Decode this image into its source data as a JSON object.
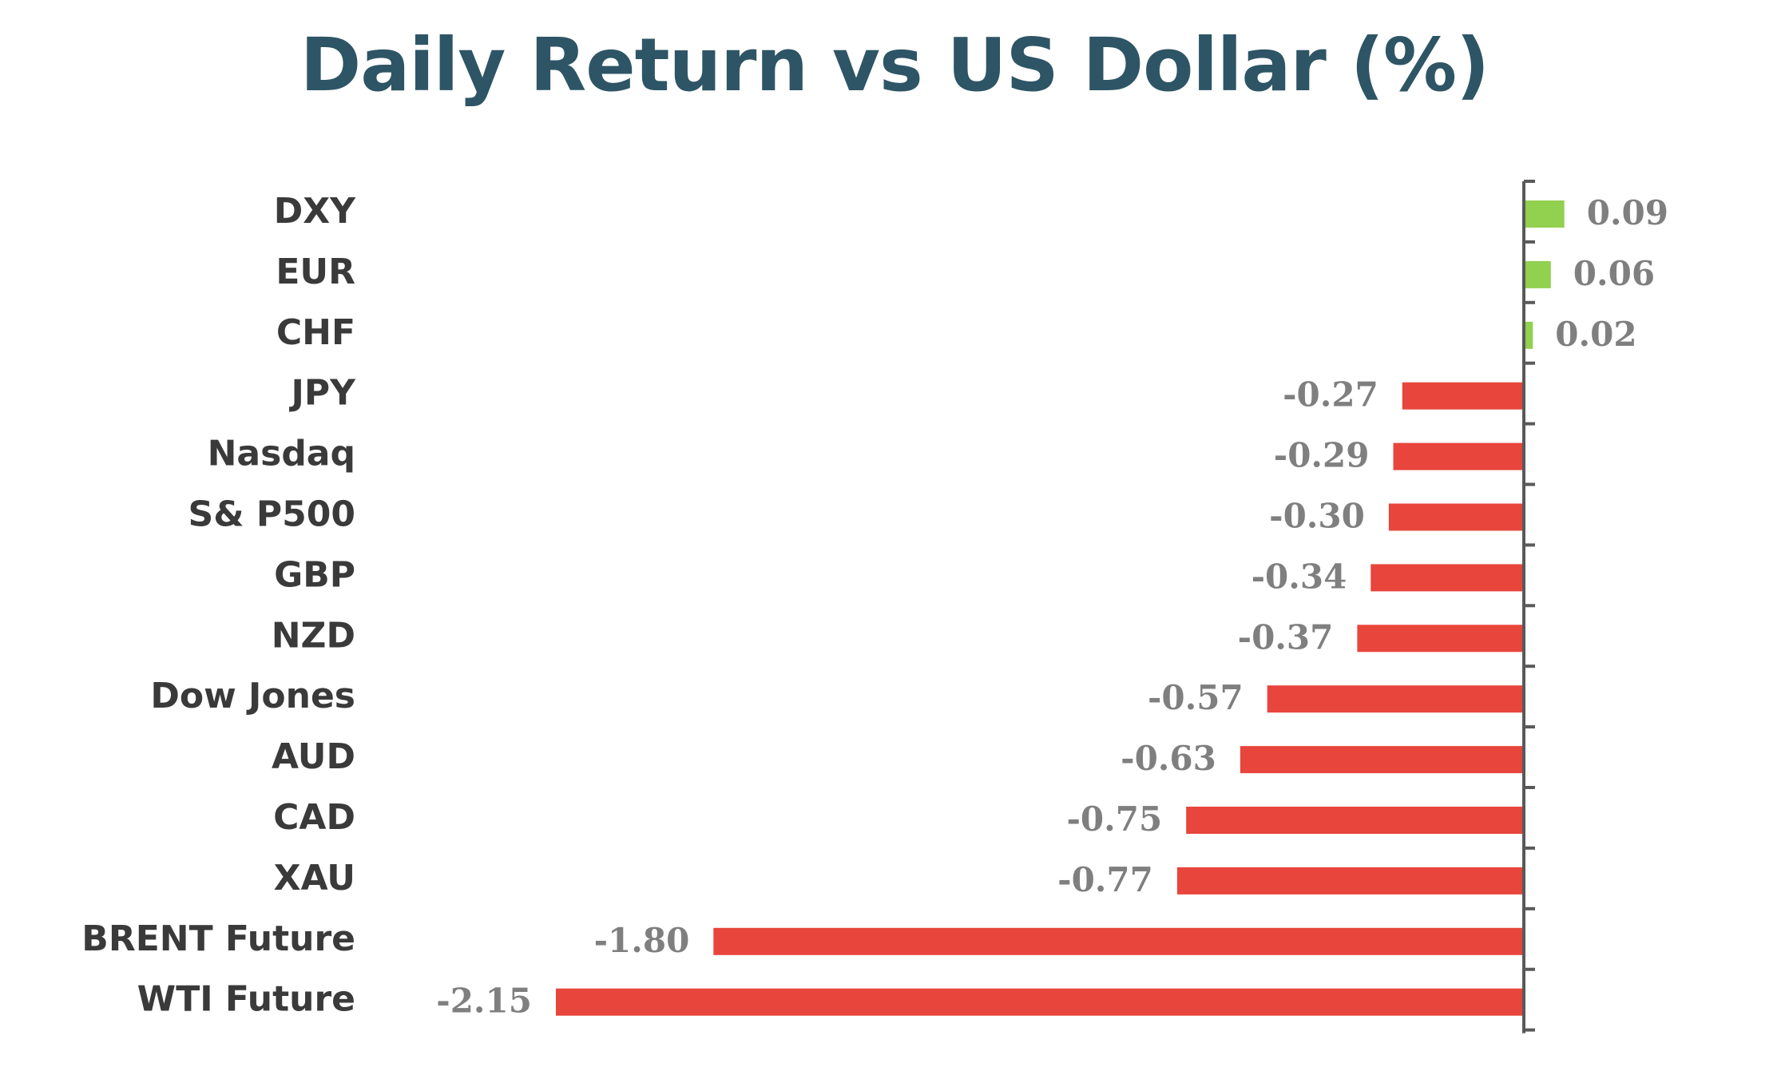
{
  "chart_data": {
    "type": "bar",
    "orientation": "horizontal",
    "title": "Daily Return vs US Dollar (%)",
    "xlabel": "",
    "ylabel": "",
    "categories": [
      "DXY",
      "EUR",
      "CHF",
      "JPY",
      "Nasdaq",
      "S& P500",
      "GBP",
      "NZD",
      "Dow Jones",
      "AUD",
      "CAD",
      "XAU",
      "BRENT Future",
      "WTI Future"
    ],
    "values": [
      0.09,
      0.06,
      0.02,
      -0.27,
      -0.29,
      -0.3,
      -0.34,
      -0.37,
      -0.57,
      -0.63,
      -0.75,
      -0.77,
      -1.8,
      -2.15
    ],
    "value_labels": [
      "0.09",
      "0.06",
      "0.02",
      "-0.27",
      "-0.29",
      "-0.30",
      "-0.34",
      "-0.37",
      "-0.57",
      "-0.63",
      "-0.75",
      "-0.77",
      "-1.80",
      "-2.15"
    ],
    "xlim": [
      -2.15,
      0.09
    ],
    "grid": false,
    "legend": "none",
    "colors": {
      "positive": "#92d050",
      "negative": "#e8453c",
      "title": "#2e5565",
      "axis": "#595959",
      "category_text": "#3a3a3a",
      "value_text": "#7f7f7f"
    }
  }
}
